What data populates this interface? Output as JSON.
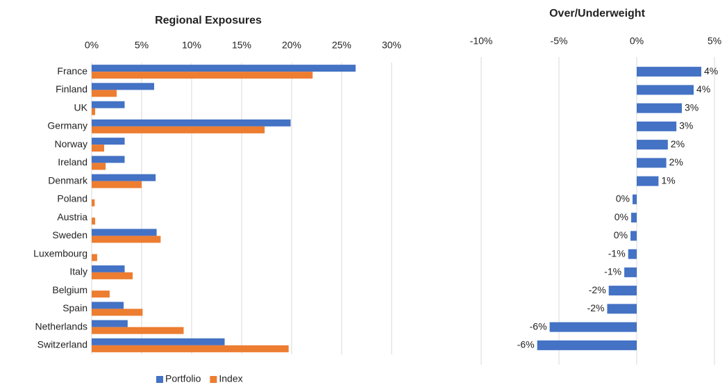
{
  "chart_data": [
    {
      "type": "bar",
      "orientation": "horizontal",
      "title": "Regional Exposures",
      "categories": [
        "France",
        "Finland",
        "UK",
        "Germany",
        "Norway",
        "Ireland",
        "Denmark",
        "Poland",
        "Austria",
        "Sweden",
        "Luxembourg",
        "Italy",
        "Belgium",
        "Spain",
        "Netherlands",
        "Switzerland"
      ],
      "series": [
        {
          "name": "Portfolio",
          "color": "#4472c4",
          "values": [
            26.4,
            6.25,
            3.3,
            19.9,
            3.3,
            3.3,
            6.4,
            0,
            0,
            6.5,
            0,
            3.3,
            0,
            3.2,
            3.6,
            13.3
          ]
        },
        {
          "name": "Index",
          "color": "#ed7d31",
          "values": [
            22.1,
            2.5,
            0.35,
            17.3,
            1.25,
            1.4,
            5.0,
            0.3,
            0.35,
            6.9,
            0.55,
            4.1,
            1.8,
            5.1,
            9.2,
            19.7
          ]
        }
      ],
      "xlim": [
        0,
        30
      ],
      "xticks": [
        {
          "value": 0,
          "label": "0%"
        },
        {
          "value": 5,
          "label": "5%"
        },
        {
          "value": 10,
          "label": "10%"
        },
        {
          "value": 15,
          "label": "15%"
        },
        {
          "value": 20,
          "label": "20%"
        },
        {
          "value": 25,
          "label": "25%"
        },
        {
          "value": 30,
          "label": "30%"
        }
      ],
      "grid": true,
      "legend": "bottom"
    },
    {
      "type": "bar",
      "orientation": "horizontal",
      "title": "Over/Underweight",
      "values": [
        4.15,
        3.66,
        2.9,
        2.55,
        2.0,
        1.9,
        1.4,
        -0.27,
        -0.36,
        -0.4,
        -0.55,
        -0.8,
        -1.8,
        -1.9,
        -5.6,
        -6.4
      ],
      "value_labels": [
        "4%",
        "4%",
        "3%",
        "3%",
        "2%",
        "2%",
        "1%",
        "0%",
        "0%",
        "0%",
        "-1%",
        "-1%",
        "-2%",
        "-2%",
        "-6%",
        "-6%"
      ],
      "color": "#4472c4",
      "xlim": [
        -10,
        5
      ],
      "xticks": [
        {
          "value": -10,
          "label": "-10%"
        },
        {
          "value": -5,
          "label": "-5%"
        },
        {
          "value": 0,
          "label": "0%"
        },
        {
          "value": 5,
          "label": "5%"
        }
      ],
      "grid": true
    }
  ]
}
